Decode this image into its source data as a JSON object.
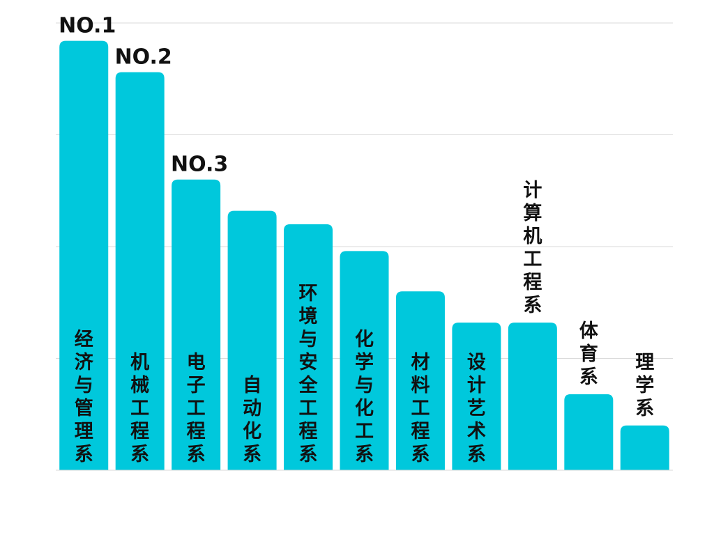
{
  "chart_data": {
    "type": "bar",
    "title": "",
    "xlabel": "",
    "ylabel": "",
    "ylim": [
      0,
      100
    ],
    "grid": true,
    "bar_color": "#00C8DC",
    "grid_color": "#D9D9D9",
    "categories": [
      "经济与管理系",
      "机械工程系",
      "电子工程系",
      "自动化系",
      "环境与安全工程系",
      "化学与化工系",
      "材料工程系",
      "设计艺术系",
      "计算机工程系",
      "体育系",
      "理学系"
    ],
    "values": [
      96,
      89,
      65,
      58,
      55,
      49,
      40,
      33,
      33,
      17,
      10
    ],
    "rank_labels": [
      "NO.1",
      "NO.2",
      "NO.3"
    ]
  }
}
